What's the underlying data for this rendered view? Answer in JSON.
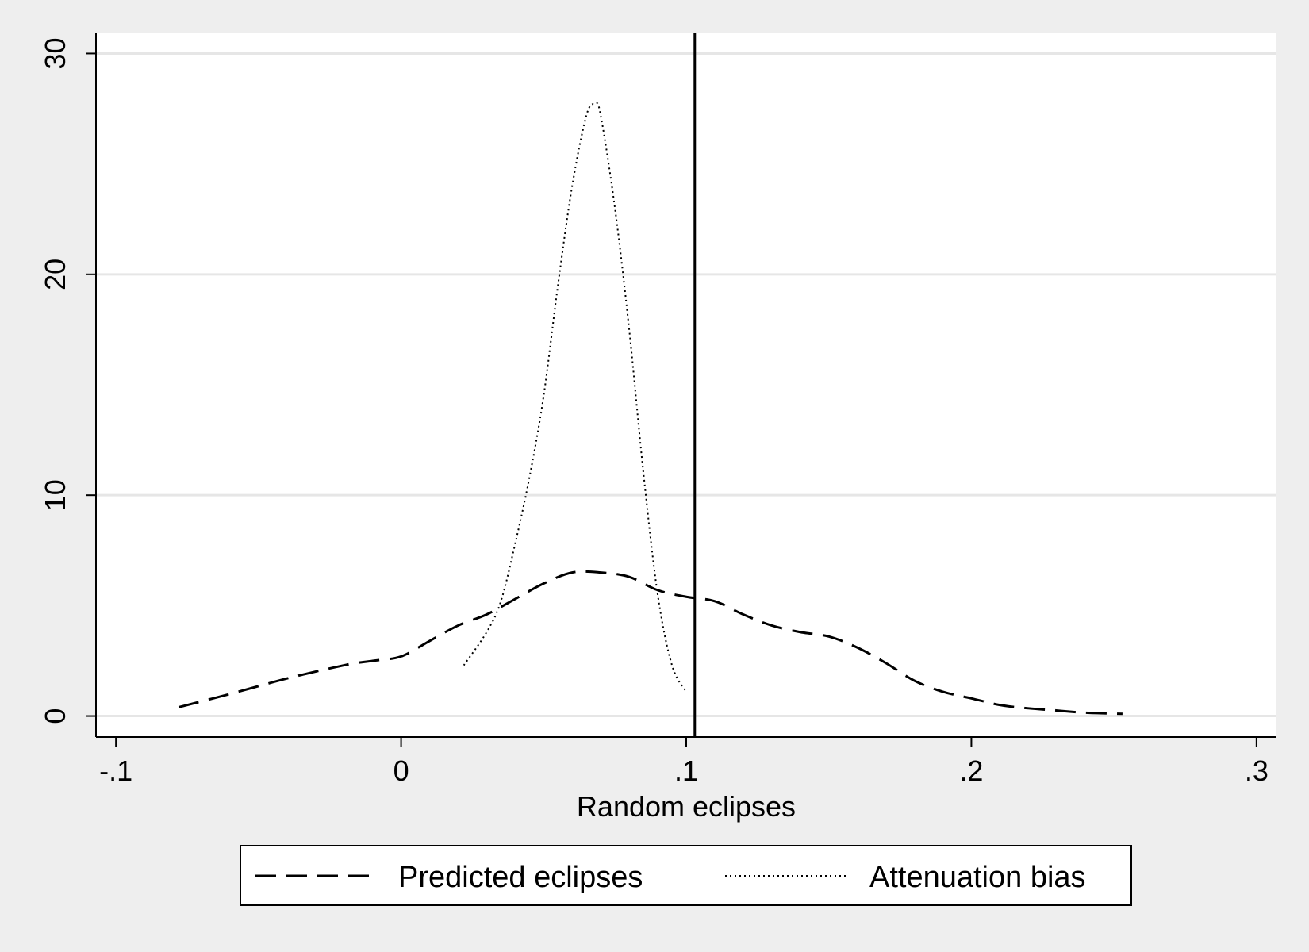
{
  "chart_data": {
    "type": "line",
    "title": "",
    "xlabel": "Random eclipses",
    "ylabel": "",
    "xlim": [
      -0.107,
      0.307
    ],
    "ylim": [
      -0.95,
      30.95
    ],
    "x_ticks": [
      -0.1,
      0,
      0.1,
      0.2,
      0.3
    ],
    "x_tick_labels": [
      "-.1",
      "0",
      ".1",
      ".2",
      ".3"
    ],
    "y_ticks": [
      0,
      10,
      20,
      30
    ],
    "y_tick_labels": [
      "0",
      "10",
      "20",
      "30"
    ],
    "grid": "horizontal",
    "reference_line": {
      "axis": "x",
      "value": 0.103
    },
    "legend_position": "bottom",
    "colors": {
      "background": "#eeeeee",
      "plot_area": "#ffffff",
      "grid": "#e6e6e6",
      "line": "#000000"
    },
    "series": [
      {
        "name": "Predicted eclipses",
        "style": "dashed",
        "x": [
          -0.078,
          -0.06,
          -0.04,
          -0.02,
          -0.01,
          0.0,
          0.01,
          0.02,
          0.03,
          0.04,
          0.05,
          0.06,
          0.07,
          0.08,
          0.09,
          0.1,
          0.11,
          0.12,
          0.13,
          0.14,
          0.15,
          0.16,
          0.17,
          0.18,
          0.19,
          0.2,
          0.21,
          0.22,
          0.23,
          0.24,
          0.253
        ],
        "y": [
          0.4,
          1.0,
          1.7,
          2.3,
          2.5,
          2.7,
          3.4,
          4.1,
          4.6,
          5.3,
          6.0,
          6.5,
          6.5,
          6.3,
          5.7,
          5.4,
          5.2,
          4.6,
          4.1,
          3.8,
          3.6,
          3.1,
          2.4,
          1.6,
          1.1,
          0.8,
          0.5,
          0.35,
          0.25,
          0.15,
          0.1
        ]
      },
      {
        "name": "Attenuation bias",
        "style": "dotted",
        "x": [
          0.022,
          0.03,
          0.035,
          0.04,
          0.045,
          0.05,
          0.055,
          0.06,
          0.065,
          0.068,
          0.07,
          0.075,
          0.08,
          0.085,
          0.09,
          0.095,
          0.1
        ],
        "y": [
          2.3,
          3.8,
          5.2,
          7.8,
          10.8,
          14.5,
          19.5,
          24.0,
          27.2,
          27.7,
          27.2,
          23.0,
          17.5,
          11.0,
          5.5,
          2.3,
          1.1
        ]
      }
    ]
  }
}
